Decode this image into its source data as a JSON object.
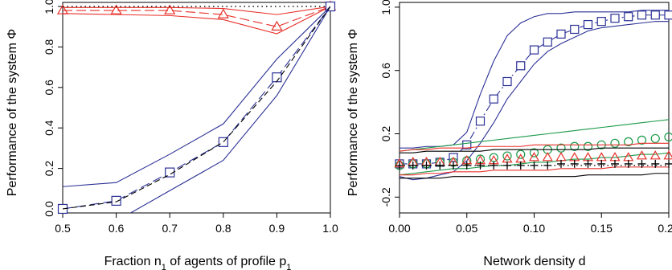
{
  "chart_data": [
    {
      "type": "line",
      "xlabel": "Fraction n",
      "xlabel_sub": "1",
      "xlabel_mid": " of agents of profile p",
      "xlabel_sub2": "1",
      "ylabel": "Performance of the system Φ",
      "xlim": [
        0.5,
        1.0
      ],
      "ylim": [
        -0.02,
        1.02
      ],
      "x": [
        0.5,
        0.6,
        0.7,
        0.8,
        0.9,
        1.0
      ],
      "xticks": [
        "0.5",
        "0.6",
        "0.7",
        "0.8",
        "0.9",
        "1.0"
      ],
      "yticks": [
        "0.0",
        "0.2",
        "0.4",
        "0.6",
        "0.8",
        "1.0"
      ],
      "colors": {
        "red": "#e8302a",
        "blue": "#2b3196",
        "black": "#000000"
      },
      "series": [
        {
          "color": "#e8302a",
          "style": "longdash",
          "marker": "triangle",
          "values": [
            0.98,
            0.98,
            0.98,
            0.96,
            0.9,
            1.0
          ]
        },
        {
          "color": "#e8302a",
          "style": "solid",
          "values": [
            0.995,
            0.995,
            0.995,
            0.99,
            0.96,
            1.0
          ]
        },
        {
          "color": "#e8302a",
          "style": "solid",
          "values": [
            0.965,
            0.96,
            0.955,
            0.935,
            0.865,
            1.0
          ]
        },
        {
          "color": "#000000",
          "style": "dotted",
          "values": [
            1.0,
            1.0,
            1.0,
            1.0,
            1.0,
            1.0
          ]
        },
        {
          "color": "#2b3196",
          "style": "longdash",
          "marker": "square",
          "values": [
            0.0,
            0.04,
            0.18,
            0.33,
            0.65,
            1.0
          ]
        },
        {
          "color": "#2b3196",
          "style": "solid",
          "values": [
            0.11,
            0.13,
            0.27,
            0.42,
            0.74,
            1.0
          ]
        },
        {
          "color": "#2b3196",
          "style": "solid",
          "values": [
            -0.12,
            -0.06,
            0.09,
            0.24,
            0.56,
            1.0
          ]
        },
        {
          "color": "#000000",
          "style": "dashed",
          "values": [
            0.0,
            0.035,
            0.17,
            0.33,
            0.63,
            1.0
          ]
        }
      ]
    },
    {
      "type": "line",
      "xlabel": "Network density d",
      "ylabel": "Performance of the system Φ",
      "xlim": [
        0.0,
        0.2
      ],
      "ylim": [
        -0.3,
        1.03
      ],
      "x": [
        0.0,
        0.01,
        0.02,
        0.03,
        0.04,
        0.05,
        0.06,
        0.07,
        0.08,
        0.09,
        0.1,
        0.11,
        0.12,
        0.13,
        0.14,
        0.15,
        0.16,
        0.17,
        0.18,
        0.19,
        0.2
      ],
      "xticks": [
        "0.00",
        "0.05",
        "0.10",
        "0.15",
        "0.20"
      ],
      "yticks": [
        "-0.2",
        "0.2",
        "0.6",
        "1.0"
      ],
      "colors": {
        "blue": "#2b3196",
        "green": "#1a9a48",
        "red": "#e8302a",
        "black": "#000000"
      },
      "series": [
        {
          "color": "#2b3196",
          "style": "dashdot",
          "marker": "square",
          "values": [
            0.01,
            0.01,
            0.01,
            0.02,
            0.05,
            0.13,
            0.28,
            0.42,
            0.53,
            0.63,
            0.73,
            0.78,
            0.83,
            0.86,
            0.89,
            0.91,
            0.93,
            0.94,
            0.95,
            0.95,
            0.95
          ]
        },
        {
          "color": "#2b3196",
          "style": "solid",
          "values": [
            0.11,
            0.11,
            0.12,
            0.12,
            0.13,
            0.21,
            0.45,
            0.66,
            0.82,
            0.9,
            0.94,
            0.96,
            0.96,
            0.97,
            0.97,
            0.97,
            0.97,
            0.97,
            0.98,
            0.98,
            0.98
          ]
        },
        {
          "color": "#2b3196",
          "style": "solid",
          "values": [
            -0.07,
            -0.09,
            -0.08,
            -0.06,
            -0.04,
            0.03,
            0.14,
            0.27,
            0.42,
            0.53,
            0.64,
            0.72,
            0.77,
            0.81,
            0.85,
            0.87,
            0.88,
            0.89,
            0.9,
            0.91,
            0.91
          ]
        },
        {
          "color": "#1a9a48",
          "style": "none",
          "marker": "circle",
          "values": [
            0.0,
            0.01,
            0.01,
            0.02,
            0.02,
            0.03,
            0.04,
            0.05,
            0.06,
            0.07,
            0.08,
            0.1,
            0.11,
            0.12,
            0.12,
            0.13,
            0.14,
            0.15,
            0.16,
            0.17,
            0.18
          ]
        },
        {
          "color": "#1a9a48",
          "style": "solid",
          "values": [
            0.09,
            0.1,
            0.11,
            0.12,
            0.13,
            0.14,
            0.15,
            0.16,
            0.17,
            0.18,
            0.19,
            0.2,
            0.21,
            0.22,
            0.23,
            0.24,
            0.25,
            0.26,
            0.27,
            0.28,
            0.29
          ]
        },
        {
          "color": "#1a9a48",
          "style": "solid",
          "values": [
            -0.06,
            -0.05,
            -0.04,
            -0.03,
            -0.02,
            -0.02,
            -0.01,
            0.0,
            0.0,
            0.01,
            0.02,
            0.02,
            0.03,
            0.04,
            0.04,
            0.05,
            0.05,
            0.06,
            0.07,
            0.07,
            0.08
          ]
        },
        {
          "color": "#e8302a",
          "style": "none",
          "marker": "triangle",
          "values": [
            0.01,
            0.02,
            0.02,
            0.02,
            0.02,
            0.03,
            0.03,
            0.03,
            0.04,
            0.04,
            0.05,
            0.05,
            0.05,
            0.05,
            0.05,
            0.05,
            0.05,
            0.05,
            0.06,
            0.06,
            0.06
          ]
        },
        {
          "color": "#e8302a",
          "style": "solid",
          "values": [
            0.09,
            0.1,
            0.1,
            0.11,
            0.11,
            0.11,
            0.12,
            0.12,
            0.12,
            0.12,
            0.13,
            0.13,
            0.13,
            0.13,
            0.13,
            0.13,
            0.13,
            0.13,
            0.14,
            0.14,
            0.14
          ]
        },
        {
          "color": "#e8302a",
          "style": "solid",
          "values": [
            -0.06,
            -0.06,
            -0.05,
            -0.05,
            -0.04,
            -0.04,
            -0.04,
            -0.03,
            -0.03,
            -0.03,
            -0.03,
            -0.03,
            -0.02,
            -0.02,
            -0.02,
            -0.02,
            -0.01,
            -0.01,
            -0.01,
            -0.01,
            -0.01
          ]
        },
        {
          "color": "#000000",
          "style": "none",
          "marker": "plus",
          "values": [
            0.0,
            0.0,
            0.0,
            0.0,
            0.0,
            0.0,
            0.0,
            0.0,
            0.0,
            0.0,
            0.0,
            0.0,
            0.01,
            0.01,
            0.01,
            0.01,
            0.01,
            0.01,
            0.01,
            0.01,
            0.01
          ]
        },
        {
          "color": "#000000",
          "style": "solid",
          "values": [
            0.08,
            0.08,
            0.09,
            0.09,
            0.09,
            0.09,
            0.09,
            0.1,
            0.1,
            0.1,
            0.1,
            0.1,
            0.1,
            0.1,
            0.1,
            0.11,
            0.11,
            0.11,
            0.11,
            0.11,
            0.11
          ]
        },
        {
          "color": "#000000",
          "style": "solid",
          "values": [
            -0.08,
            -0.08,
            -0.08,
            -0.08,
            -0.07,
            -0.07,
            -0.07,
            -0.07,
            -0.07,
            -0.07,
            -0.07,
            -0.07,
            -0.07,
            -0.07,
            -0.06,
            -0.06,
            -0.06,
            -0.06,
            -0.06,
            -0.05,
            -0.05
          ]
        },
        {
          "color": "#000000",
          "style": "dotted",
          "values": [
            0.0,
            0.0,
            0.0,
            0.0,
            0.0,
            0.0,
            0.0,
            0.0,
            0.0,
            0.0,
            0.0,
            0.0,
            0.0,
            0.0,
            0.0,
            0.0,
            0.0,
            0.0,
            0.0,
            0.0,
            0.0
          ]
        }
      ]
    }
  ]
}
